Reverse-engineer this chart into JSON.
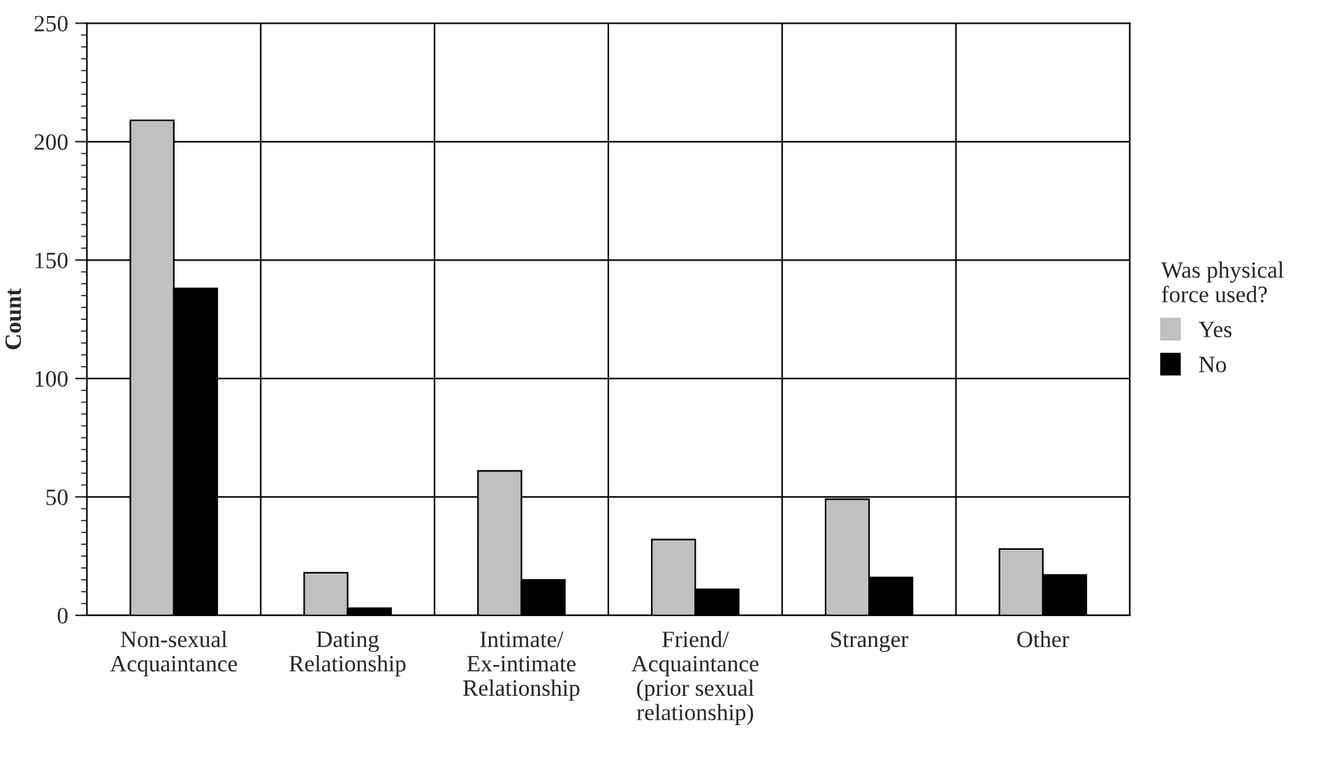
{
  "chart_data": {
    "type": "bar",
    "ylabel": "Count",
    "legend_title": "Was physical\nforce used?",
    "categories": [
      "Non-sexual\nAcquaintance",
      "Dating\nRelationship",
      "Intimate/\nEx-intimate\nRelationship",
      "Friend/\nAcquaintance\n(prior sexual\nrelationship)",
      "Stranger",
      "Other"
    ],
    "series": [
      {
        "name": "Yes",
        "color": "#c0c0c0",
        "values": [
          209,
          18,
          61,
          32,
          49,
          28
        ]
      },
      {
        "name": "No",
        "color": "#000000",
        "values": [
          138,
          3,
          15,
          11,
          16,
          17
        ]
      }
    ],
    "ylim": [
      0,
      250
    ],
    "yticks": [
      0,
      50,
      100,
      150,
      200,
      250
    ],
    "grid": true,
    "legend": "right"
  }
}
